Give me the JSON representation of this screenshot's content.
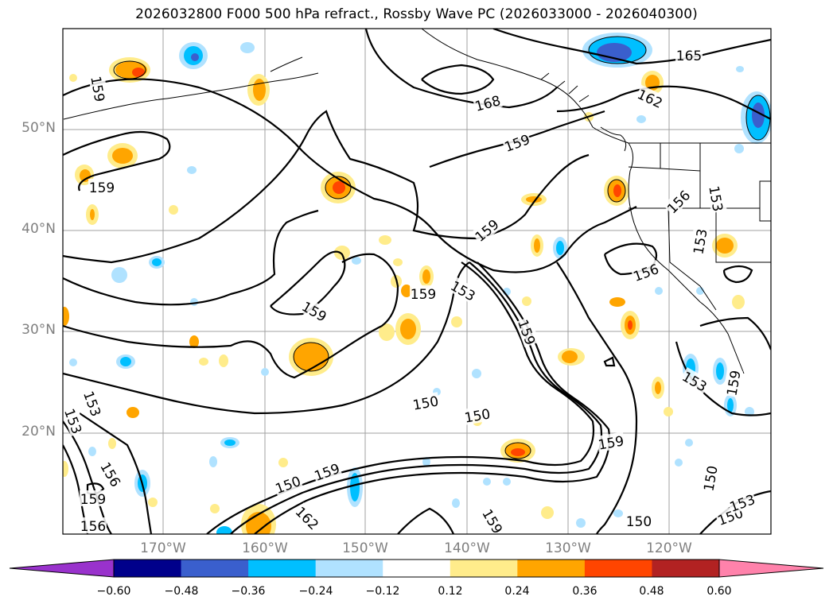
{
  "title": "2026032800 F000 500 hPa refract., Rossby Wave PC (2026033000 - 2026040300)",
  "lat_labels": [
    "50°N",
    "40°N",
    "30°N",
    "20°N"
  ],
  "lon_labels": [
    "170°W",
    "160°W",
    "150°W",
    "140°W",
    "130°W",
    "120°W"
  ],
  "colorbar": {
    "ticks": [
      "−0.60",
      "−0.48",
      "−0.36",
      "−0.24",
      "−0.12",
      "0.12",
      "0.24",
      "0.36",
      "0.48",
      "0.60"
    ],
    "colors": [
      "#9932cc",
      "#00008b",
      "#3a5fcd",
      "#00bfff",
      "#b0e2ff",
      "#ffffff",
      "#ffec8b",
      "#ffa500",
      "#ff4500",
      "#b22222",
      "#ff82ab"
    ]
  },
  "contour_labels": [
    "159",
    "159",
    "159",
    "168",
    "165",
    "162",
    "159",
    "156",
    "153",
    "153",
    "156",
    "159",
    "153",
    "159",
    "159",
    "150",
    "150",
    "159",
    "153",
    "159",
    "153",
    "153",
    "156",
    "159",
    "156",
    "150",
    "150",
    "162",
    "159",
    "150",
    "150",
    "153",
    "159"
  ]
}
